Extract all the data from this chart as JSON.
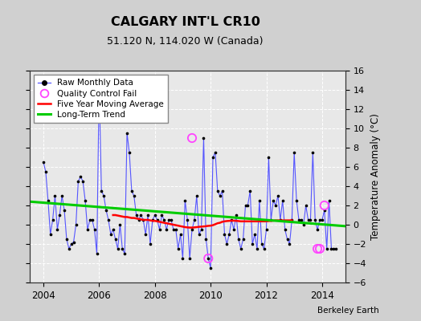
{
  "title": "CALGARY INT'L CR10",
  "subtitle": "51.120 N, 114.020 W (Canada)",
  "ylabel": "Temperature Anomaly (°C)",
  "watermark": "Berkeley Earth",
  "ylim": [
    -6,
    16
  ],
  "yticks": [
    -6,
    -4,
    -2,
    0,
    2,
    4,
    6,
    8,
    10,
    12,
    14,
    16
  ],
  "xlim": [
    2003.5,
    2014.83
  ],
  "xticks": [
    2004,
    2006,
    2008,
    2010,
    2012,
    2014
  ],
  "fig_bg_color": "#d0d0d0",
  "plot_bg_color": "#e8e8e8",
  "raw_color": "#5555ff",
  "raw_marker_color": "#000000",
  "qc_fail_color": "#ff44ff",
  "moving_avg_color": "#ff0000",
  "trend_color": "#00cc00",
  "raw_monthly_x": [
    2004.0,
    2004.083,
    2004.167,
    2004.25,
    2004.333,
    2004.417,
    2004.5,
    2004.583,
    2004.667,
    2004.75,
    2004.833,
    2004.917,
    2005.0,
    2005.083,
    2005.167,
    2005.25,
    2005.333,
    2005.417,
    2005.5,
    2005.583,
    2005.667,
    2005.75,
    2005.833,
    2005.917,
    2006.0,
    2006.083,
    2006.167,
    2006.25,
    2006.333,
    2006.417,
    2006.5,
    2006.583,
    2006.667,
    2006.75,
    2006.833,
    2006.917,
    2007.0,
    2007.083,
    2007.167,
    2007.25,
    2007.333,
    2007.417,
    2007.5,
    2007.583,
    2007.667,
    2007.75,
    2007.833,
    2007.917,
    2008.0,
    2008.083,
    2008.167,
    2008.25,
    2008.333,
    2008.417,
    2008.5,
    2008.583,
    2008.667,
    2008.75,
    2008.833,
    2008.917,
    2009.0,
    2009.083,
    2009.167,
    2009.25,
    2009.333,
    2009.417,
    2009.5,
    2009.583,
    2009.667,
    2009.75,
    2009.833,
    2009.917,
    2010.0,
    2010.083,
    2010.167,
    2010.25,
    2010.333,
    2010.417,
    2010.5,
    2010.583,
    2010.667,
    2010.75,
    2010.833,
    2010.917,
    2011.0,
    2011.083,
    2011.167,
    2011.25,
    2011.333,
    2011.417,
    2011.5,
    2011.583,
    2011.667,
    2011.75,
    2011.833,
    2011.917,
    2012.0,
    2012.083,
    2012.167,
    2012.25,
    2012.333,
    2012.417,
    2012.5,
    2012.583,
    2012.667,
    2012.75,
    2012.833,
    2012.917,
    2013.0,
    2013.083,
    2013.167,
    2013.25,
    2013.333,
    2013.417,
    2013.5,
    2013.583,
    2013.667,
    2013.75,
    2013.833,
    2013.917,
    2014.0,
    2014.083,
    2014.167,
    2014.25,
    2014.333,
    2014.417,
    2014.5
  ],
  "raw_monthly_y": [
    6.5,
    5.5,
    2.5,
    -1.0,
    0.5,
    3.0,
    -0.5,
    1.0,
    3.0,
    1.5,
    -1.5,
    -2.5,
    -2.0,
    -1.8,
    0.0,
    4.5,
    5.0,
    4.5,
    2.5,
    -0.5,
    0.5,
    0.5,
    -0.5,
    -3.0,
    14.5,
    3.5,
    3.0,
    1.5,
    0.5,
    -1.0,
    -0.5,
    -1.5,
    -2.5,
    0.0,
    -2.5,
    -3.0,
    9.5,
    7.5,
    3.5,
    3.0,
    1.0,
    0.5,
    1.0,
    0.5,
    -1.0,
    1.0,
    -2.0,
    0.5,
    1.0,
    0.5,
    -0.5,
    1.0,
    0.5,
    -0.5,
    0.5,
    0.5,
    -0.5,
    -0.5,
    -2.5,
    -1.0,
    -3.5,
    2.5,
    0.5,
    -3.5,
    -0.5,
    0.5,
    3.0,
    -1.0,
    -0.5,
    9.0,
    -1.5,
    -3.5,
    -4.5,
    7.0,
    7.5,
    3.5,
    3.0,
    3.5,
    -1.0,
    -2.0,
    -1.0,
    0.5,
    -0.5,
    1.0,
    -1.5,
    -2.5,
    -1.5,
    2.0,
    2.0,
    3.5,
    -2.0,
    -1.0,
    -2.5,
    2.5,
    -2.0,
    -2.5,
    -0.5,
    7.0,
    0.5,
    2.5,
    2.0,
    3.0,
    0.5,
    2.5,
    -0.5,
    -1.5,
    -2.0,
    0.5,
    7.5,
    2.5,
    0.5,
    0.5,
    0.0,
    2.0,
    0.5,
    0.5,
    7.5,
    0.5,
    -0.5,
    0.5,
    0.5,
    1.5,
    -2.5,
    2.5,
    -2.5,
    -2.5,
    -2.5
  ],
  "qc_fail_x": [
    2009.333,
    2009.917,
    2013.833,
    2013.917,
    2014.083
  ],
  "qc_fail_y": [
    9.0,
    -3.5,
    -2.5,
    -2.5,
    2.0
  ],
  "moving_avg_x": [
    2006.5,
    2006.583,
    2006.667,
    2006.75,
    2006.833,
    2006.917,
    2007.0,
    2007.083,
    2007.167,
    2007.25,
    2007.333,
    2007.417,
    2007.5,
    2007.583,
    2007.667,
    2007.75,
    2007.833,
    2007.917,
    2008.0,
    2008.083,
    2008.167,
    2008.25,
    2008.333,
    2008.417,
    2008.5,
    2008.583,
    2008.667,
    2008.75,
    2008.833,
    2008.917,
    2009.0,
    2009.083,
    2009.167,
    2009.25,
    2009.333,
    2009.417,
    2009.5,
    2009.583,
    2009.667,
    2009.75,
    2009.833,
    2009.917,
    2010.0,
    2010.083,
    2010.167,
    2010.25,
    2010.333,
    2010.417,
    2010.5,
    2010.583,
    2010.667,
    2010.75,
    2010.833,
    2010.917,
    2011.0,
    2011.083,
    2011.167,
    2011.25,
    2011.333,
    2011.417,
    2011.5,
    2011.583,
    2011.667,
    2011.75,
    2011.833,
    2011.917,
    2012.0,
    2012.083,
    2012.167,
    2012.25,
    2012.333,
    2012.417,
    2012.5,
    2012.583,
    2012.667,
    2012.75,
    2012.833,
    2012.917
  ],
  "moving_avg_y": [
    1.0,
    1.0,
    0.95,
    0.9,
    0.85,
    0.8,
    0.8,
    0.75,
    0.7,
    0.7,
    0.65,
    0.6,
    0.55,
    0.5,
    0.5,
    0.5,
    0.45,
    0.4,
    0.4,
    0.35,
    0.3,
    0.25,
    0.2,
    0.15,
    0.1,
    0.05,
    0.0,
    -0.05,
    -0.1,
    -0.15,
    -0.2,
    -0.25,
    -0.28,
    -0.3,
    -0.3,
    -0.28,
    -0.25,
    -0.22,
    -0.2,
    -0.18,
    -0.15,
    -0.12,
    -0.1,
    -0.05,
    0.05,
    0.15,
    0.2,
    0.3,
    0.35,
    0.38,
    0.4,
    0.42,
    0.42,
    0.4,
    0.38,
    0.35,
    0.35,
    0.35,
    0.35,
    0.35,
    0.35,
    0.35,
    0.35,
    0.35,
    0.35,
    0.35,
    0.35,
    0.38,
    0.4,
    0.42,
    0.45,
    0.45,
    0.45,
    0.45,
    0.45,
    0.45,
    0.45,
    0.45
  ],
  "trend_x": [
    2003.5,
    2014.83
  ],
  "trend_y": [
    2.4,
    -0.15
  ]
}
